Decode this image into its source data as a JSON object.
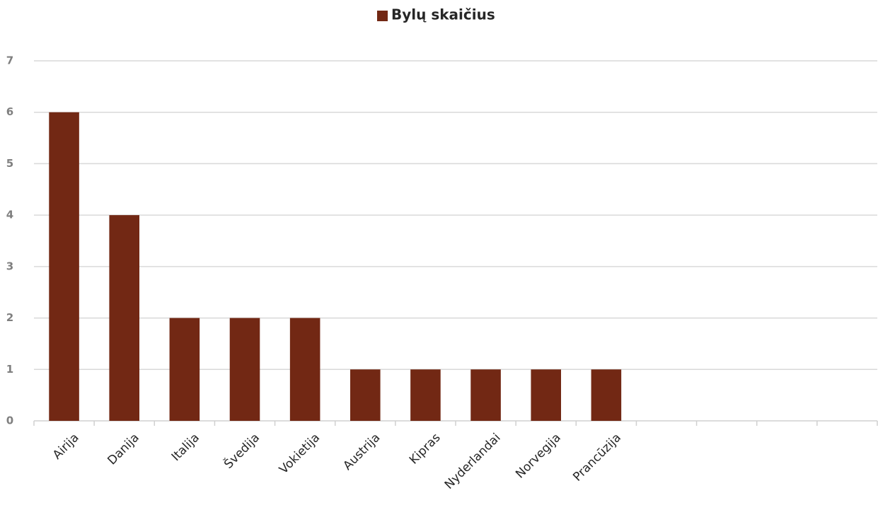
{
  "chart_data": {
    "type": "bar",
    "categories": [
      "Airija",
      "Danija",
      "Italija",
      "Švedija",
      "Vokietija",
      "Austrija",
      "Kipras",
      "Nyderlandai",
      "Norvegija",
      "Prancūzija",
      null,
      null,
      null,
      null
    ],
    "series": [
      {
        "name": "Bylų skaičius",
        "color": "#722814",
        "values": [
          6,
          4,
          2,
          2,
          2,
          1,
          1,
          1,
          1,
          1,
          null,
          null,
          null,
          null
        ]
      }
    ],
    "ylim": [
      0,
      7
    ],
    "yticks": [
      0,
      1,
      2,
      3,
      4,
      5,
      6,
      7
    ],
    "grid": true,
    "legend": "top"
  }
}
